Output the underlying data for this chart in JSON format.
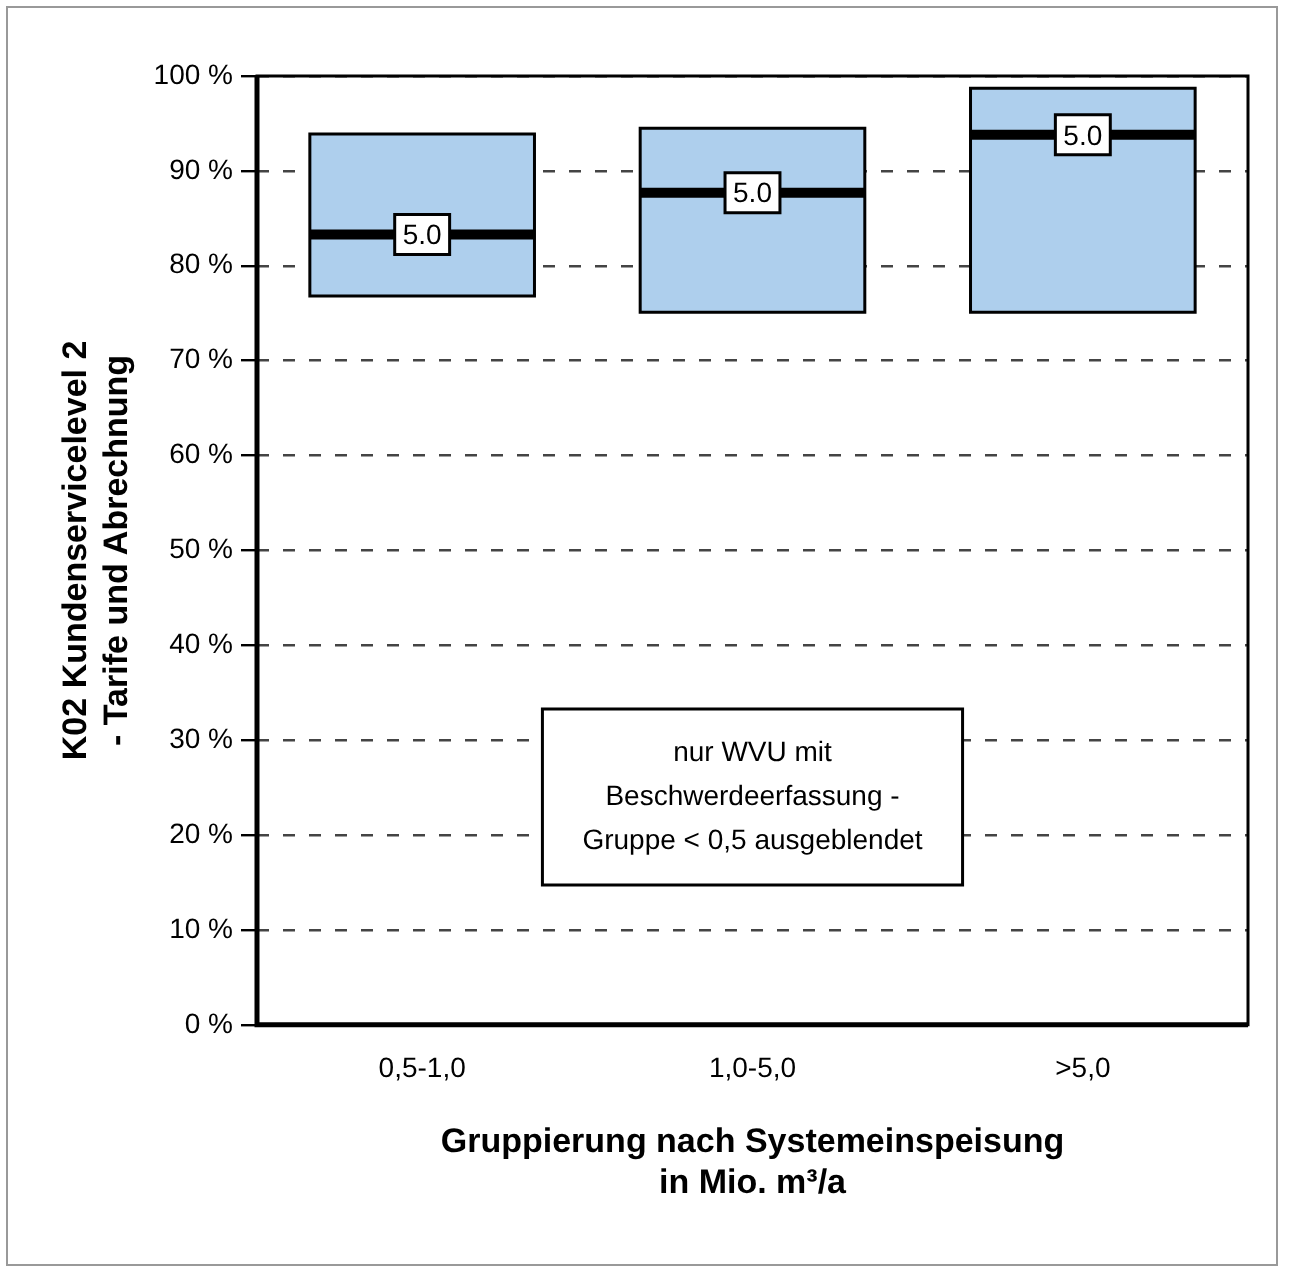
{
  "chart_data": {
    "type": "box",
    "xlabel": "Gruppierung nach Systemeinspeisung\nin Mio. m³/a",
    "ylabel": "K02 Kundenservicelevel 2\n- Tarife und Abrechnung",
    "categories": [
      "0,5-1,0",
      "1,0-5,0",
      ">5,0"
    ],
    "boxes": [
      {
        "low": 76.8,
        "q1": 76.8,
        "median": 83.3,
        "q3": 93.9,
        "high": 93.9
      },
      {
        "low": 75.1,
        "q1": 75.1,
        "median": 87.7,
        "q3": 94.5,
        "high": 94.5
      },
      {
        "low": 75.1,
        "q1": 75.1,
        "median": 93.8,
        "q3": 98.7,
        "high": 98.7
      }
    ],
    "color": "#aecfed",
    "ylim": [
      0,
      100
    ],
    "yticks": [
      {
        "value": 0,
        "label": "0 %"
      },
      {
        "value": 10,
        "label": "10 %"
      },
      {
        "value": 20,
        "label": "20 %"
      },
      {
        "value": 30,
        "label": "30 %"
      },
      {
        "value": 40,
        "label": "40 %"
      },
      {
        "value": 50,
        "label": "50 %"
      },
      {
        "value": 60,
        "label": "60 %"
      },
      {
        "value": 70,
        "label": "70 %"
      },
      {
        "value": 80,
        "label": "80 %"
      },
      {
        "value": 90,
        "label": "90 %"
      },
      {
        "value": 100,
        "label": "100 %"
      }
    ],
    "grid": "y",
    "legend": false,
    "annotations": [
      {
        "text": "5.0",
        "x": "0,5-1,0",
        "y": 83.3
      },
      {
        "text": "5.0",
        "x": "1,0-5,0",
        "y": 87.7
      },
      {
        "text": "5.0",
        "x": ">5,0",
        "y": 93.8
      },
      "nur WVU mit\nBeschwerdeerfassung -\nGruppe < 0,5 ausgeblendet"
    ]
  }
}
